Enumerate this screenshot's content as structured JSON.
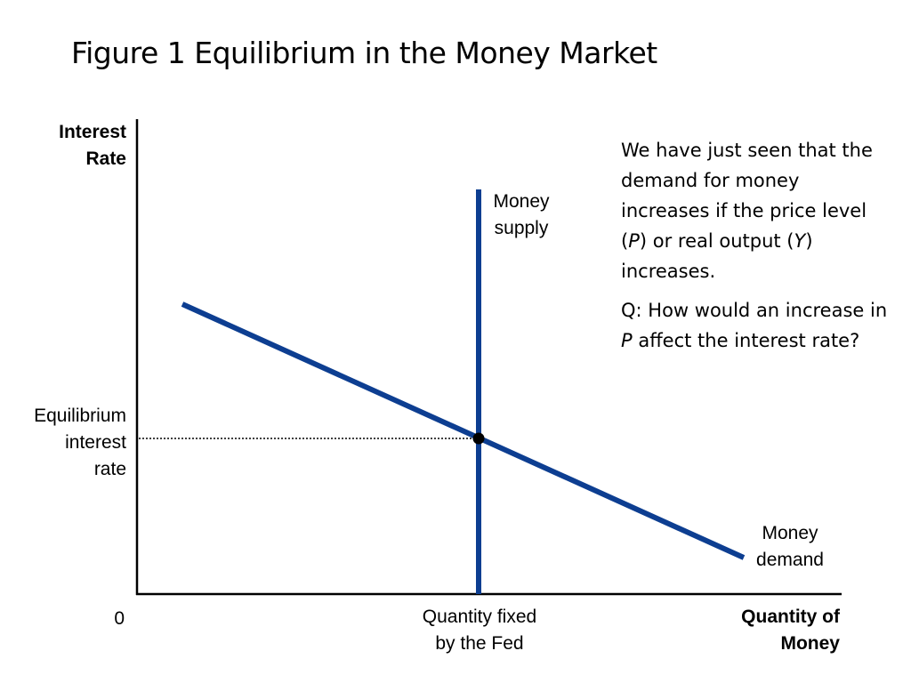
{
  "title": "Figure 1 Equilibrium in the Money Market",
  "axes": {
    "y_label_line1": "Interest",
    "y_label_line2": "Rate",
    "x_label_line1": "Quantity of",
    "x_label_line2": "Money",
    "origin": "0"
  },
  "labels": {
    "equilibrium_line1": "Equilibrium",
    "equilibrium_line2": "interest",
    "equilibrium_line3": "rate",
    "quantity_fixed_line1": "Quantity fixed",
    "quantity_fixed_line2": "by the Fed",
    "supply_line1": "Money",
    "supply_line2": "supply",
    "demand_line1": "Money",
    "demand_line2": "demand"
  },
  "note": {
    "p1_a": "We have just seen that the demand for money increases if the price level (",
    "p1_P": "P",
    "p1_b": ") or real output (",
    "p1_Y": "Y",
    "p1_c": ") increases.",
    "p2_a": "Q: How would an increase in ",
    "p2_P": "P",
    "p2_b": " affect the interest rate?"
  },
  "colors": {
    "curve": "#0D3E91",
    "axis": "#000000",
    "equilibrium_point": "#000000"
  }
}
